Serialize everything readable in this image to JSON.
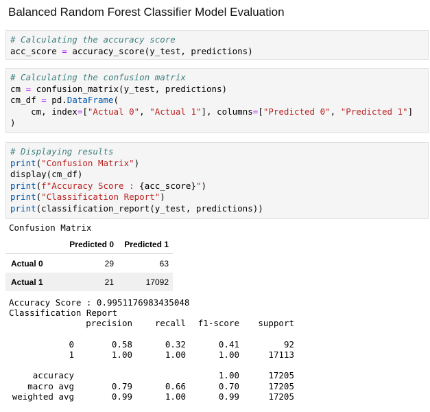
{
  "title": "Balanced Random Forest Classifier Model Evaluation",
  "cell1": [
    [
      {
        "t": "# Calculating the accuracy score",
        "c": "cm"
      }
    ],
    [
      {
        "t": "acc_score "
      },
      {
        "t": "=",
        "c": "op"
      },
      {
        "t": " accuracy_score(y_test, predictions)"
      }
    ]
  ],
  "cell2": [
    [
      {
        "t": "# Calculating the confusion matrix",
        "c": "cm"
      }
    ],
    [
      {
        "t": "cm "
      },
      {
        "t": "=",
        "c": "op"
      },
      {
        "t": " confusion_matrix(y_test, predictions)"
      }
    ],
    [
      {
        "t": "cm_df "
      },
      {
        "t": "=",
        "c": "op"
      },
      {
        "t": " pd"
      },
      {
        "t": "."
      },
      {
        "t": "DataFrame",
        "c": "fn"
      },
      {
        "t": "("
      }
    ],
    [
      {
        "t": "    cm, index"
      },
      {
        "t": "=",
        "c": "op"
      },
      {
        "t": "["
      },
      {
        "t": "\"Actual 0\"",
        "c": "st"
      },
      {
        "t": ", "
      },
      {
        "t": "\"Actual 1\"",
        "c": "st"
      },
      {
        "t": "], columns"
      },
      {
        "t": "=",
        "c": "op"
      },
      {
        "t": "["
      },
      {
        "t": "\"Predicted 0\"",
        "c": "st"
      },
      {
        "t": ", "
      },
      {
        "t": "\"Predicted 1\"",
        "c": "st"
      },
      {
        "t": "]"
      }
    ],
    [
      {
        "t": ")"
      }
    ]
  ],
  "cell3": [
    [
      {
        "t": "# Displaying results",
        "c": "cm"
      }
    ],
    [
      {
        "t": "print",
        "c": "fn"
      },
      {
        "t": "("
      },
      {
        "t": "\"Confusion Matrix\"",
        "c": "st"
      },
      {
        "t": ")"
      }
    ],
    [
      {
        "t": "display(cm_df)"
      }
    ],
    [
      {
        "t": "print",
        "c": "fn"
      },
      {
        "t": "("
      },
      {
        "t": "f\"Accuracy Score : ",
        "c": "st"
      },
      {
        "t": "{acc_score}"
      },
      {
        "t": "\"",
        "c": "st"
      },
      {
        "t": ")"
      }
    ],
    [
      {
        "t": "print",
        "c": "fn"
      },
      {
        "t": "("
      },
      {
        "t": "\"Classification Report\"",
        "c": "st"
      },
      {
        "t": ")"
      }
    ],
    [
      {
        "t": "print",
        "c": "fn"
      },
      {
        "t": "(classification_report(y_test, predictions))"
      }
    ]
  ],
  "output": {
    "confusion_label": "Confusion Matrix",
    "df": {
      "columns": [
        "Predicted 0",
        "Predicted 1"
      ],
      "rows": [
        {
          "index": "Actual 0",
          "values": [
            "29",
            "63"
          ]
        },
        {
          "index": "Actual 1",
          "values": [
            "21",
            "17092"
          ]
        }
      ]
    },
    "accuracy_line": "Accuracy Score : 0.9951176983435048",
    "report_label": "Classification Report",
    "report_header": [
      "",
      "precision",
      "recall",
      "f1-score",
      "support"
    ],
    "report_rows": [
      [],
      [
        "0",
        "0.58",
        "0.32",
        "0.41",
        "92"
      ],
      [
        "1",
        "1.00",
        "1.00",
        "1.00",
        "17113"
      ],
      [],
      [
        "accuracy",
        "",
        "",
        "1.00",
        "17205"
      ],
      [
        "macro avg",
        "0.79",
        "0.66",
        "0.70",
        "17205"
      ],
      [
        "weighted avg",
        "0.99",
        "1.00",
        "0.99",
        "17205"
      ]
    ]
  }
}
